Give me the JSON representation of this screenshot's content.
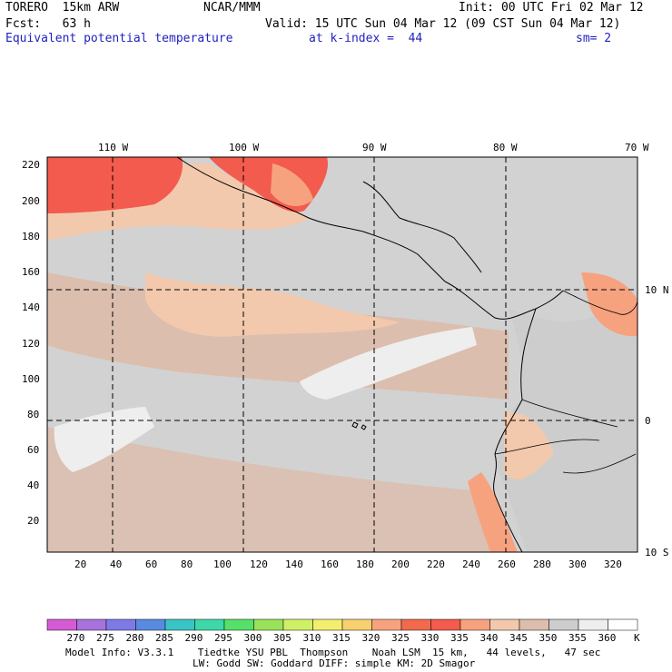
{
  "header": {
    "model": "TORERO  15km ARW",
    "center": "NCAR/MMM",
    "init": "Init: 00 UTC Fri 02 Mar 12",
    "fcst": "Fcst:   63 h",
    "valid": "Valid: 15 UTC Sun 04 Mar 12 (09 CST Sun 04 Mar 12)",
    "field": "Equivalent potential temperature",
    "level": "at k-index =  44",
    "smooth": "sm= 2"
  },
  "colors": {
    "blue_text": "#1f1fbf",
    "ocean_light": "#d2d2d2",
    "warm_pale": "#dcbeae",
    "warm_tan": "#f2c9ac",
    "warm_salmon": "#f7a27f",
    "warm_red": "#f25b4e"
  },
  "map": {
    "top_lon_labels": [
      "110 W",
      "100 W",
      "90 W",
      "80 W",
      "70 W"
    ],
    "right_lat_labels": [
      "10 N",
      "0",
      "10 S"
    ],
    "left_y_ticks": [
      "220",
      "200",
      "180",
      "160",
      "140",
      "120",
      "100",
      "80",
      "60",
      "40",
      "20"
    ],
    "bottom_x_ticks": [
      "20",
      "40",
      "60",
      "80",
      "100",
      "120",
      "140",
      "160",
      "180",
      "200",
      "220",
      "240",
      "260",
      "280",
      "300",
      "320"
    ]
  },
  "colorbar": {
    "labels": [
      "270",
      "275",
      "280",
      "285",
      "290",
      "295",
      "300",
      "305",
      "310",
      "315",
      "320",
      "325",
      "330",
      "335",
      "340",
      "345",
      "350",
      "355",
      "360"
    ],
    "unit": "K",
    "colors": [
      "#d45bd4",
      "#a872dd",
      "#7d7ae8",
      "#5a8ae0",
      "#3ac4c4",
      "#3ed8a8",
      "#55e06a",
      "#9ae25a",
      "#cff066",
      "#f3ee6e",
      "#f7d070",
      "#f7a27f",
      "#f26a4e",
      "#f25b4e",
      "#f7a27f",
      "#f2c9ac",
      "#dcbeae",
      "#cdcdcd",
      "#eeeeee",
      "#ffffff"
    ]
  },
  "footer": {
    "line1": "Model Info: V3.3.1    Tiedtke YSU PBL  Thompson    Noah LSM  15 km,   44 levels,   47 sec",
    "line2": "LW: Godd SW: Goddard DIFF: simple KM: 2D Smagor"
  }
}
